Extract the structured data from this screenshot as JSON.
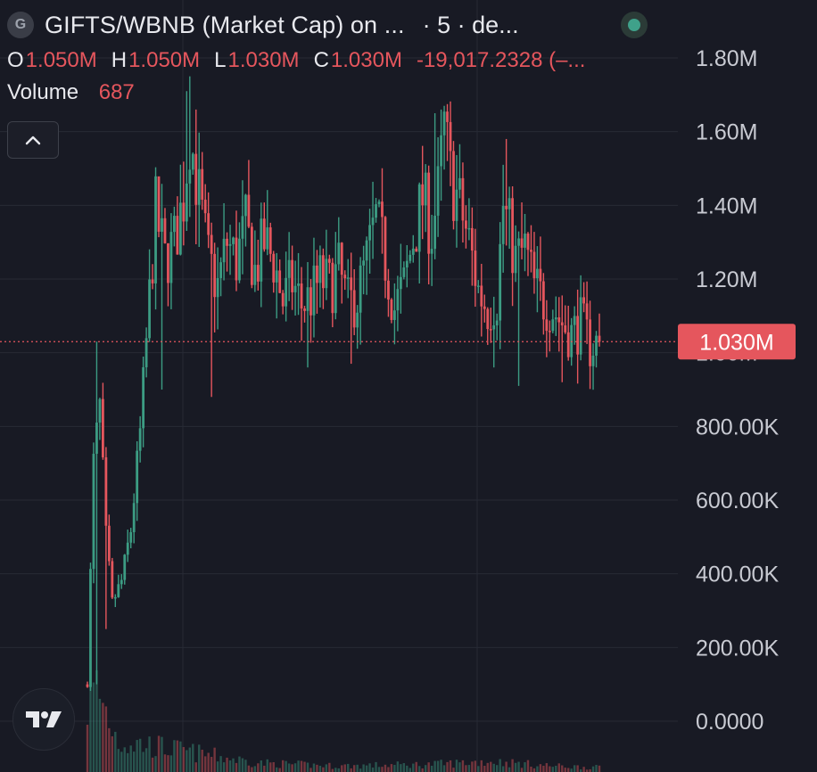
{
  "header": {
    "symbol_initial": "G",
    "title": "GIFTS/WBNB (Market Cap) on ...",
    "interval": "· 5 · de...",
    "ohlc": [
      {
        "key": "O",
        "value": "1.050M"
      },
      {
        "key": "H",
        "value": "1.050M"
      },
      {
        "key": "L",
        "value": "1.030M"
      },
      {
        "key": "C",
        "value": "1.030M"
      }
    ],
    "change": "-19,017.2328 (–...",
    "volume_label": "Volume",
    "volume_value": "687"
  },
  "colors": {
    "background": "#181a24",
    "grid": "#272a35",
    "up": "#3c9c83",
    "down": "#e5565d",
    "axis_text": "#c8cad2"
  },
  "icons": {
    "status": "status-dot-icon",
    "collapse": "chevron-up-icon",
    "logo": "tradingview-logo-icon"
  },
  "chart_data": {
    "type": "candlestick",
    "y_axis": {
      "min": 0,
      "max": 1900000,
      "ticks": [
        {
          "value": 0,
          "label": "0.0000"
        },
        {
          "value": 200000,
          "label": "200.00K"
        },
        {
          "value": 400000,
          "label": "400.00K"
        },
        {
          "value": 600000,
          "label": "600.00K"
        },
        {
          "value": 800000,
          "label": "800.00K"
        },
        {
          "value": 1000000,
          "label": "1.00M"
        },
        {
          "value": 1200000,
          "label": "1.20M"
        },
        {
          "value": 1400000,
          "label": "1.40M"
        },
        {
          "value": 1600000,
          "label": "1.60M"
        },
        {
          "value": 1800000,
          "label": "1.80M"
        }
      ]
    },
    "last_price": {
      "value": 1030000,
      "label": "1.030M"
    },
    "grid": true,
    "candle_count": 166,
    "price_path": [
      [
        0,
        100000
      ],
      [
        2,
        700000
      ],
      [
        4,
        850000
      ],
      [
        6,
        500000
      ],
      [
        8,
        320000
      ],
      [
        11,
        380000
      ],
      [
        14,
        520000
      ],
      [
        17,
        780000
      ],
      [
        20,
        1150000
      ],
      [
        22,
        1380000
      ],
      [
        25,
        1250000
      ],
      [
        28,
        1300000
      ],
      [
        31,
        1420000
      ],
      [
        33,
        1600000
      ],
      [
        36,
        1420000
      ],
      [
        39,
        1250000
      ],
      [
        42,
        1180000
      ],
      [
        45,
        1300000
      ],
      [
        48,
        1250000
      ],
      [
        51,
        1340000
      ],
      [
        54,
        1220000
      ],
      [
        57,
        1300000
      ],
      [
        60,
        1250000
      ],
      [
        63,
        1140000
      ],
      [
        66,
        1190000
      ],
      [
        69,
        1130000
      ],
      [
        72,
        1150000
      ],
      [
        75,
        1200000
      ],
      [
        78,
        1180000
      ],
      [
        81,
        1220000
      ],
      [
        84,
        1130000
      ],
      [
        87,
        1150000
      ],
      [
        90,
        1250000
      ],
      [
        93,
        1360000
      ],
      [
        96,
        1250000
      ],
      [
        99,
        1120000
      ],
      [
        102,
        1180000
      ],
      [
        105,
        1310000
      ],
      [
        108,
        1420000
      ],
      [
        111,
        1330000
      ],
      [
        113,
        1430000
      ],
      [
        115,
        1610000
      ],
      [
        117,
        1480000
      ],
      [
        120,
        1400000
      ],
      [
        123,
        1300000
      ],
      [
        126,
        1170000
      ],
      [
        129,
        1120000
      ],
      [
        132,
        1150000
      ],
      [
        134,
        1400000
      ],
      [
        136,
        1330000
      ],
      [
        138,
        1250000
      ],
      [
        141,
        1280000
      ],
      [
        144,
        1180000
      ],
      [
        147,
        1140000
      ],
      [
        150,
        1120000
      ],
      [
        153,
        1080000
      ],
      [
        156,
        1050000
      ],
      [
        159,
        1080000
      ],
      [
        162,
        1020000
      ],
      [
        165,
        1030000
      ]
    ],
    "spikes": [
      {
        "index": 3,
        "high": 1030000,
        "low": 100000
      },
      {
        "index": 6,
        "low": 250000
      },
      {
        "index": 23,
        "high": 1410000
      },
      {
        "index": 24,
        "low": 900000
      },
      {
        "index": 32,
        "high": 1710000
      },
      {
        "index": 33,
        "high": 1750000
      },
      {
        "index": 35,
        "high": 1660000
      },
      {
        "index": 40,
        "low": 880000
      },
      {
        "index": 71,
        "low": 960000
      },
      {
        "index": 85,
        "low": 970000
      },
      {
        "index": 112,
        "high": 1650000
      },
      {
        "index": 114,
        "high": 1660000
      },
      {
        "index": 115,
        "high": 1670000
      },
      {
        "index": 131,
        "low": 960000
      },
      {
        "index": 134,
        "high": 1510000
      },
      {
        "index": 135,
        "high": 1580000
      },
      {
        "index": 139,
        "low": 910000
      },
      {
        "index": 153,
        "low": 920000
      },
      {
        "index": 159,
        "high": 1210000
      },
      {
        "index": 164,
        "low": 960000
      }
    ],
    "volume_profile": [
      [
        0,
        90
      ],
      [
        3,
        110
      ],
      [
        6,
        80
      ],
      [
        10,
        40
      ],
      [
        20,
        35
      ],
      [
        35,
        25
      ],
      [
        55,
        12
      ],
      [
        80,
        8
      ],
      [
        110,
        10
      ],
      [
        130,
        14
      ],
      [
        150,
        8
      ],
      [
        165,
        6
      ]
    ]
  }
}
